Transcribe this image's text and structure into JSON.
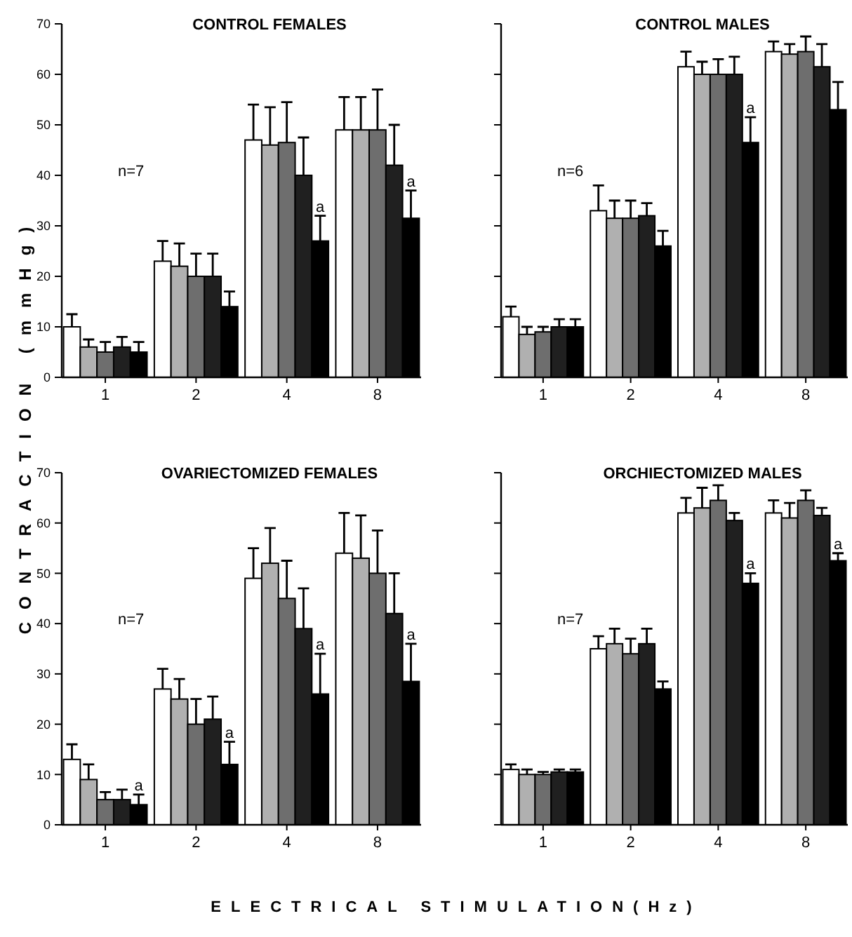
{
  "chart_data": [
    {
      "type": "bar",
      "title": "CONTROL FEMALES",
      "ylabel": "CONTRACTION (mmHg)",
      "categories": [
        "1",
        "2",
        "4",
        "8"
      ],
      "ylim": [
        0,
        70
      ],
      "yticks": [
        0,
        10,
        20,
        30,
        40,
        50,
        60,
        70
      ],
      "grid": false,
      "series": [
        {
          "color": "#ffffff",
          "values": [
            10,
            23,
            47,
            49
          ],
          "errors": [
            [
              10,
              12.5
            ],
            [
              23,
              27
            ],
            [
              47,
              54
            ],
            [
              49,
              55.5
            ]
          ]
        },
        {
          "color": "#b0b0b0",
          "values": [
            6,
            22,
            46,
            49
          ],
          "errors": [
            [
              6,
              7.5
            ],
            [
              22,
              26.5
            ],
            [
              46,
              53.5
            ],
            [
              49,
              55.5
            ]
          ]
        },
        {
          "color": "#6e6e6e",
          "values": [
            5,
            20,
            46.5,
            49
          ],
          "errors": [
            [
              5,
              7
            ],
            [
              20,
              24.5
            ],
            [
              46.5,
              54.5
            ],
            [
              49,
              57
            ]
          ]
        },
        {
          "color": "#202020",
          "values": [
            6,
            20,
            40,
            42
          ],
          "errors": [
            [
              6,
              8
            ],
            [
              20,
              24.5
            ],
            [
              40,
              47.5
            ],
            [
              42,
              50
            ]
          ]
        },
        {
          "color": "#000000",
          "values": [
            5,
            14,
            27,
            31.5
          ],
          "errors": [
            [
              5,
              7
            ],
            [
              14,
              17
            ],
            [
              27,
              32
            ],
            [
              31.5,
              37
            ]
          ]
        }
      ],
      "annotations": [
        "n=7",
        "a",
        "a"
      ]
    },
    {
      "type": "bar",
      "title": "CONTROL MALES",
      "categories": [
        "1",
        "2",
        "4",
        "8"
      ],
      "ylim": [
        0,
        70
      ],
      "yticks": [
        0,
        10,
        20,
        30,
        40,
        50,
        60,
        70
      ],
      "tick_labels": "x",
      "grid": false,
      "series": [
        {
          "color": "#ffffff",
          "values": [
            12,
            33,
            61.5,
            64.5
          ],
          "errors": [
            [
              12,
              14
            ],
            [
              33,
              38
            ],
            [
              61.5,
              64.5
            ],
            [
              64.5,
              66.5
            ]
          ]
        },
        {
          "color": "#b0b0b0",
          "values": [
            8.5,
            31.5,
            60,
            64
          ],
          "errors": [
            [
              8.5,
              10
            ],
            [
              31.5,
              35
            ],
            [
              60,
              62.5
            ],
            [
              64,
              66
            ]
          ]
        },
        {
          "color": "#6e6e6e",
          "values": [
            9,
            31.5,
            60,
            64.5
          ],
          "errors": [
            [
              9,
              10
            ],
            [
              31.5,
              35
            ],
            [
              60,
              63
            ],
            [
              64.5,
              67.5
            ]
          ]
        },
        {
          "color": "#202020",
          "values": [
            10,
            32,
            60,
            61.5
          ],
          "errors": [
            [
              10,
              11.5
            ],
            [
              32,
              34.5
            ],
            [
              60,
              63.5
            ],
            [
              61.5,
              66
            ]
          ]
        },
        {
          "color": "#000000",
          "values": [
            10,
            26,
            46.5,
            53
          ],
          "errors": [
            [
              10,
              11.5
            ],
            [
              26,
              29
            ],
            [
              46.5,
              51.5
            ],
            [
              53,
              58.5
            ]
          ]
        }
      ],
      "annotations": [
        "n=6",
        "a"
      ]
    },
    {
      "type": "bar",
      "title": "OVARIECTOMIZED FEMALES",
      "xlabel": "ELECTRICAL STIMULATION(Hz)",
      "categories": [
        "1",
        "2",
        "4",
        "8"
      ],
      "ylim": [
        0,
        70
      ],
      "yticks": [
        0,
        10,
        20,
        30,
        40,
        50,
        60,
        70
      ],
      "grid": false,
      "series": [
        {
          "color": "#ffffff",
          "values": [
            13,
            27,
            49,
            54
          ],
          "errors": [
            [
              13,
              16
            ],
            [
              27,
              31
            ],
            [
              49,
              55
            ],
            [
              54,
              62
            ]
          ]
        },
        {
          "color": "#b0b0b0",
          "values": [
            9,
            25,
            52,
            53
          ],
          "errors": [
            [
              9,
              12
            ],
            [
              25,
              29
            ],
            [
              52,
              59
            ],
            [
              53,
              61.5
            ]
          ]
        },
        {
          "color": "#6e6e6e",
          "values": [
            5,
            20,
            45,
            50
          ],
          "errors": [
            [
              5,
              6.5
            ],
            [
              20,
              25
            ],
            [
              45,
              52.5
            ],
            [
              50,
              58.5
            ]
          ]
        },
        {
          "color": "#202020",
          "values": [
            5,
            21,
            39,
            42
          ],
          "errors": [
            [
              5,
              7
            ],
            [
              21,
              25.5
            ],
            [
              39,
              47
            ],
            [
              42,
              50
            ]
          ]
        },
        {
          "color": "#000000",
          "values": [
            4,
            12,
            26,
            28.5
          ],
          "errors": [
            [
              4,
              6
            ],
            [
              12,
              16.5
            ],
            [
              26,
              34
            ],
            [
              28.5,
              36
            ]
          ]
        }
      ],
      "annotations": [
        "n=7",
        "a",
        "a",
        "a",
        "a"
      ]
    },
    {
      "type": "bar",
      "title": "ORCHIECTOMIZED MALES",
      "categories": [
        "1",
        "2",
        "4",
        "8"
      ],
      "ylim": [
        0,
        70
      ],
      "yticks": [
        0,
        10,
        20,
        30,
        40,
        50,
        60,
        70
      ],
      "tick_labels": "x",
      "grid": false,
      "series": [
        {
          "color": "#ffffff",
          "values": [
            11,
            35,
            62,
            62
          ],
          "errors": [
            [
              11,
              12
            ],
            [
              35,
              37.5
            ],
            [
              62,
              65
            ],
            [
              62,
              64.5
            ]
          ]
        },
        {
          "color": "#b0b0b0",
          "values": [
            10,
            36,
            63,
            61
          ],
          "errors": [
            [
              10,
              11
            ],
            [
              36,
              39
            ],
            [
              63,
              67
            ],
            [
              61,
              64
            ]
          ]
        },
        {
          "color": "#6e6e6e",
          "values": [
            10,
            34,
            64.5,
            64.5
          ],
          "errors": [
            [
              10,
              10.5
            ],
            [
              34,
              37
            ],
            [
              64.5,
              67.5
            ],
            [
              64.5,
              66.5
            ]
          ]
        },
        {
          "color": "#202020",
          "values": [
            10.5,
            36,
            60.5,
            61.5
          ],
          "errors": [
            [
              10.5,
              11
            ],
            [
              36,
              39
            ],
            [
              60.5,
              62
            ],
            [
              61.5,
              63
            ]
          ]
        },
        {
          "color": "#000000",
          "values": [
            10.5,
            27,
            48,
            52.5
          ],
          "errors": [
            [
              10.5,
              11
            ],
            [
              27,
              28.5
            ],
            [
              48,
              50
            ],
            [
              52.5,
              54
            ]
          ]
        }
      ],
      "annotations": [
        "n=7",
        "a",
        "a"
      ]
    }
  ]
}
